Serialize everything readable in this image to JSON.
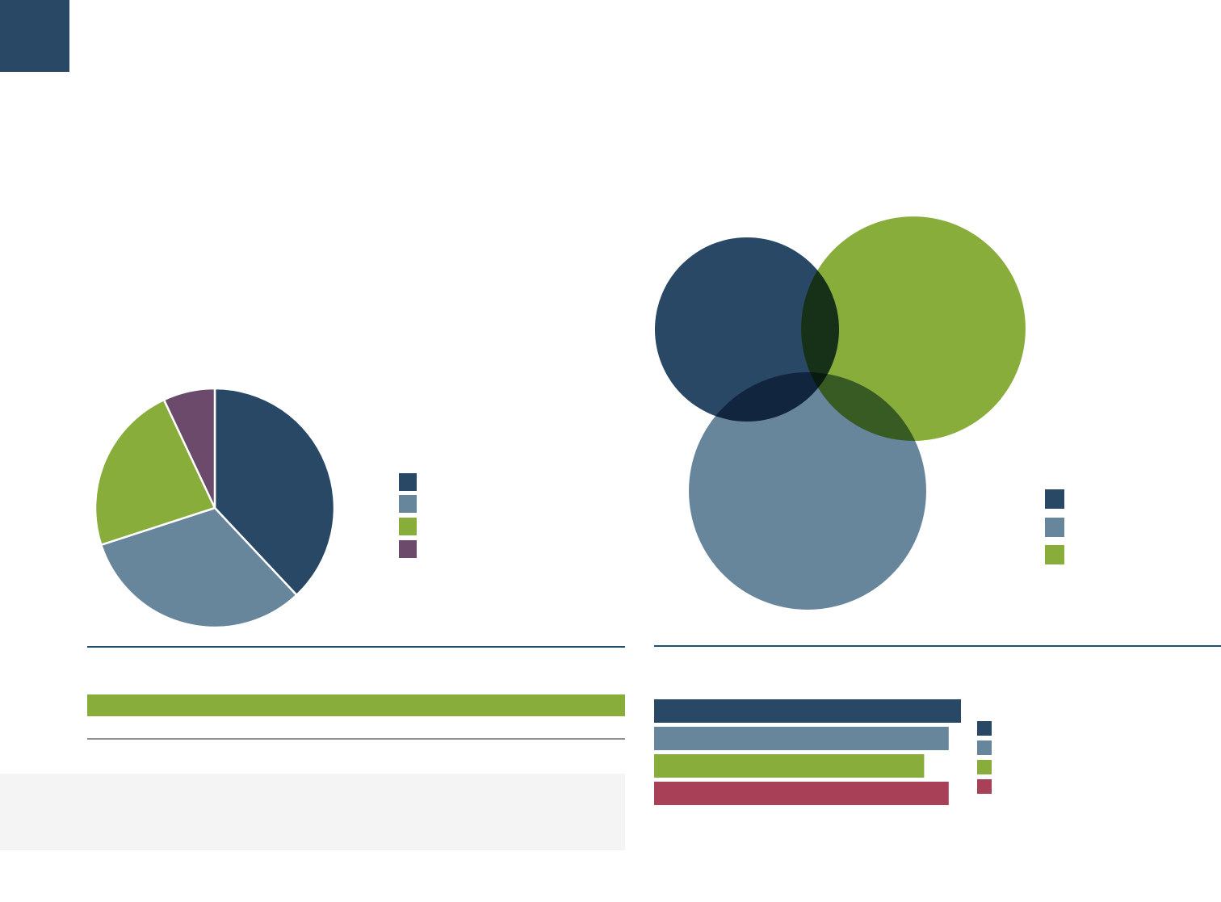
{
  "chart_data": [
    {
      "type": "pie",
      "values": [
        38,
        32,
        23,
        7
      ],
      "colors": [
        "#284866",
        "#68869b",
        "#88ad3b",
        "#6b4a6b"
      ]
    },
    {
      "type": "venn",
      "values": [
        130,
        193,
        216
      ],
      "colors": [
        "#284866",
        "#88ad3b",
        "#68869b"
      ]
    },
    {
      "type": "bar",
      "values": [
        100,
        96,
        88,
        96
      ],
      "xlim": [
        0,
        100
      ],
      "colors": [
        "#284866",
        "#68869b",
        "#88ad3b",
        "#a84058"
      ]
    }
  ]
}
